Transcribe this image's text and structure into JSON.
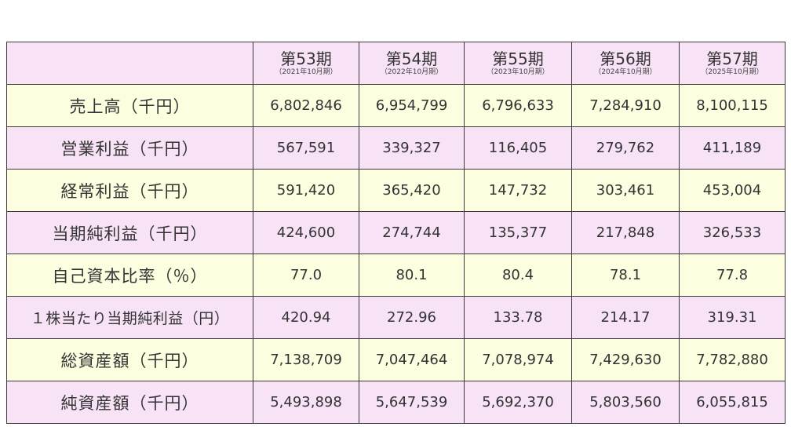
{
  "table": {
    "columns": [
      {
        "period": "第53期",
        "date": "（2021年10月期）"
      },
      {
        "period": "第54期",
        "date": "（2022年10月期）"
      },
      {
        "period": "第55期",
        "date": "（2023年10月期）"
      },
      {
        "period": "第56期",
        "date": "（2024年10月期）"
      },
      {
        "period": "第57期",
        "date": "（2025年10月期）"
      }
    ],
    "rows": [
      {
        "label": "売上高（千円）",
        "values": [
          "6,802,846",
          "6,954,799",
          "6,796,633",
          "7,284,910",
          "8,100,115"
        ]
      },
      {
        "label": "営業利益（千円）",
        "values": [
          "567,591",
          "339,327",
          "116,405",
          "279,762",
          "411,189"
        ]
      },
      {
        "label": "経常利益（千円）",
        "values": [
          "591,420",
          "365,420",
          "147,732",
          "303,461",
          "453,004"
        ]
      },
      {
        "label": "当期純利益（千円）",
        "values": [
          "424,600",
          "274,744",
          "135,377",
          "217,848",
          "326,533"
        ]
      },
      {
        "label": "自己資本比率（％）",
        "values": [
          "77.0",
          "80.1",
          "80.4",
          "78.1",
          "77.8"
        ]
      },
      {
        "label": "１株当たり当期純利益（円）",
        "values": [
          "420.94",
          "272.96",
          "133.78",
          "214.17",
          "319.31"
        ]
      },
      {
        "label": "総資産額（千円）",
        "values": [
          "7,138,709",
          "7,047,464",
          "7,078,974",
          "7,429,630",
          "7,782,880"
        ]
      },
      {
        "label": "純資産額（千円）",
        "values": [
          "5,493,898",
          "5,647,539",
          "5,692,370",
          "5,803,560",
          "6,055,815"
        ]
      }
    ]
  },
  "colors": {
    "row_yellow": "#fdfde0",
    "row_pink": "#f7e2f6",
    "border": "#3a3a3a",
    "text": "#333333"
  }
}
